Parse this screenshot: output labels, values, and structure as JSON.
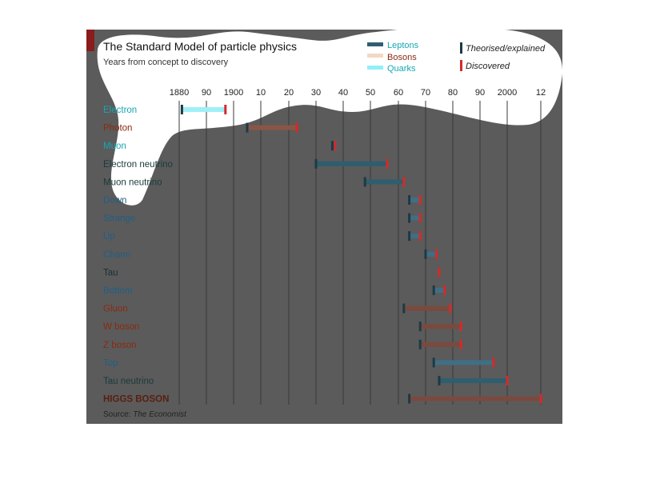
{
  "colors": {
    "panel": "#5b5b5b",
    "accent": "#8a1c1c",
    "leptons": "#2f5e6e",
    "bosons": "#7a4a3f",
    "quarks": "#3f6f86",
    "higgs_label": "#5a1f10",
    "theorised_tick": "#1d3a45",
    "discovered_tick": "#d42a2a",
    "label_lepton": "#14a8b4",
    "label_boson": "#8a2a10",
    "label_quark": "#1f5f86",
    "label_dark": "#1a3a3a",
    "label_tau": "#1a3030"
  },
  "chart_data": {
    "type": "range",
    "title": "The Standard Model of particle physics",
    "subtitle": "Years from concept to discovery",
    "x_ticks": [
      {
        "value": 1880,
        "label": "1880"
      },
      {
        "value": 1890,
        "label": "90"
      },
      {
        "value": 1900,
        "label": "1900"
      },
      {
        "value": 1910,
        "label": "10"
      },
      {
        "value": 1920,
        "label": "20"
      },
      {
        "value": 1930,
        "label": "30"
      },
      {
        "value": 1940,
        "label": "40"
      },
      {
        "value": 1950,
        "label": "50"
      },
      {
        "value": 1960,
        "label": "60"
      },
      {
        "value": 1970,
        "label": "70"
      },
      {
        "value": 1980,
        "label": "80"
      },
      {
        "value": 1990,
        "label": "90"
      },
      {
        "value": 2000,
        "label": "2000"
      },
      {
        "value": 2012,
        "label": "12"
      }
    ],
    "xlim": [
      1880,
      2012
    ],
    "legend_categories": [
      {
        "key": "leptons",
        "label": "Leptons"
      },
      {
        "key": "bosons",
        "label": "Bosons"
      },
      {
        "key": "quarks",
        "label": "Quarks"
      }
    ],
    "legend_markers": [
      {
        "key": "theorised",
        "label": "Theorised/explained"
      },
      {
        "key": "discovered",
        "label": "Discovered"
      }
    ],
    "particles": [
      {
        "name": "Electron",
        "category": "leptons",
        "label_color": "label_lepton",
        "bar_color": "#9ff0f6",
        "theorised": 1881,
        "discovered": 1897
      },
      {
        "name": "Photon",
        "category": "bosons",
        "label_color": "label_boson",
        "bar_color": "#8a5545",
        "theorised": 1905,
        "discovered": 1923
      },
      {
        "name": "Muon",
        "category": "leptons",
        "label_color": "label_lepton",
        "bar_color": "#2f5e6e",
        "theorised": 1936,
        "discovered": 1937
      },
      {
        "name": "Electron neutrino",
        "category": "leptons",
        "label_color": "label_dark",
        "bar_color": "#2f5e6e",
        "theorised": 1930,
        "discovered": 1956
      },
      {
        "name": "Muon neutrino",
        "category": "leptons",
        "label_color": "label_dark",
        "bar_color": "#2f5e6e",
        "theorised": 1948,
        "discovered": 1962
      },
      {
        "name": "Down",
        "category": "quarks",
        "label_color": "label_quark",
        "bar_color": "#3f6f86",
        "theorised": 1964,
        "discovered": 1968
      },
      {
        "name": "Strange",
        "category": "quarks",
        "label_color": "label_quark",
        "bar_color": "#3f6f86",
        "theorised": 1964,
        "discovered": 1968
      },
      {
        "name": "Up",
        "category": "quarks",
        "label_color": "label_quark",
        "bar_color": "#3f6f86",
        "theorised": 1964,
        "discovered": 1968
      },
      {
        "name": "Charm",
        "category": "quarks",
        "label_color": "label_quark",
        "bar_color": "#3f6f86",
        "theorised": 1970,
        "discovered": 1974
      },
      {
        "name": "Tau",
        "category": "leptons",
        "label_color": "label_tau",
        "bar_color": "#2f5e6e",
        "theorised": 1975,
        "discovered": 1975
      },
      {
        "name": "Bottom",
        "category": "quarks",
        "label_color": "label_quark",
        "bar_color": "#3f6f86",
        "theorised": 1973,
        "discovered": 1977
      },
      {
        "name": "Gluon",
        "category": "bosons",
        "label_color": "label_boson",
        "bar_color": "#7a4a3f",
        "theorised": 1962,
        "discovered": 1979
      },
      {
        "name": "W boson",
        "category": "bosons",
        "label_color": "label_boson",
        "bar_color": "#7a4a3f",
        "theorised": 1968,
        "discovered": 1983
      },
      {
        "name": "Z boson",
        "category": "bosons",
        "label_color": "label_boson",
        "bar_color": "#7a4a3f",
        "theorised": 1968,
        "discovered": 1983
      },
      {
        "name": "Top",
        "category": "quarks",
        "label_color": "label_quark",
        "bar_color": "#3f6f86",
        "theorised": 1973,
        "discovered": 1995
      },
      {
        "name": "Tau neutrino",
        "category": "leptons",
        "label_color": "label_dark",
        "bar_color": "#2f5e6e",
        "theorised": 1975,
        "discovered": 2000
      },
      {
        "name": "HIGGS BOSON",
        "category": "bosons",
        "label_color": "higgs_label",
        "bar_color": "#7a4a3f",
        "theorised": 1964,
        "discovered": 2012
      }
    ],
    "source_prefix": "Source:",
    "source_name": "The Economist"
  }
}
